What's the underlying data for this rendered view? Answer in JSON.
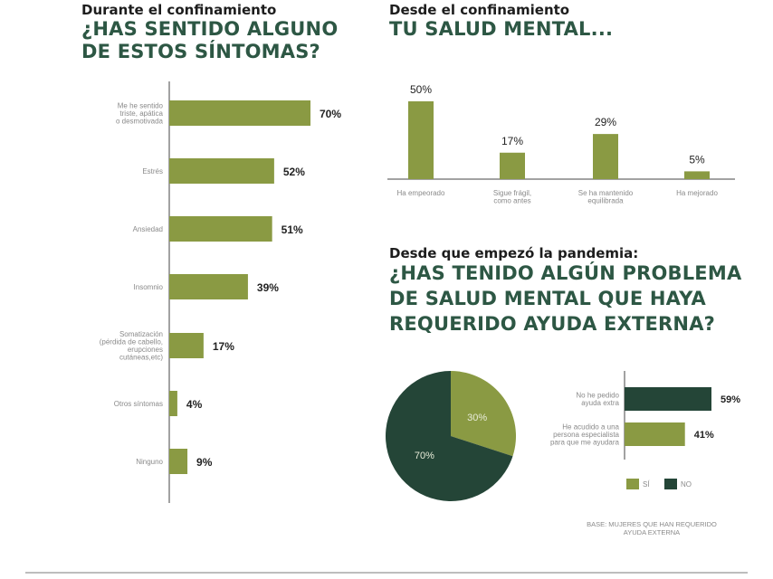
{
  "colors": {
    "green": "#8a9a43",
    "dark": "#244537",
    "heading": "#2d5744",
    "label": "#8a8a8a"
  },
  "left": {
    "subtitle": "Durante el confinamiento",
    "title": [
      "¿HAS SENTIDO ALGUNO",
      "DE ESTOS SÍNTOMAS?"
    ]
  },
  "top_right": {
    "subtitle": "Desde el confinamiento",
    "title": [
      "TU SALUD MENTAL..."
    ]
  },
  "bottom_right": {
    "subtitle": "Desde que empezó la pandemia:",
    "title": [
      "¿HAS TENIDO ALGÚN PROBLEMA",
      "DE SALUD MENTAL QUE HAYA",
      "REQUERIDO AYUDA EXTERNA?"
    ]
  },
  "base_note": [
    "BASE: MUJERES QUE HAN REQUERIDO",
    "AYUDA EXTERNA"
  ],
  "chart_data": [
    {
      "type": "bar",
      "orientation": "horizontal",
      "categories": [
        [
          "Me he sentido",
          "triste, apática",
          "o desmotivada"
        ],
        [
          "Estrés"
        ],
        [
          "Ansiedad"
        ],
        [
          "Insomnio"
        ],
        [
          "Somatización",
          "(pérdida de cabello,",
          "erupciones",
          "cutáneas,etc)"
        ],
        [
          "Otros síntomas"
        ],
        [
          "Ninguno"
        ]
      ],
      "values": [
        70,
        52,
        51,
        39,
        17,
        4,
        9
      ],
      "value_labels": [
        "70%",
        "52%",
        "51%",
        "39%",
        "17%",
        "4%",
        "9%"
      ],
      "xlim": [
        0,
        100
      ]
    },
    {
      "type": "bar",
      "orientation": "vertical",
      "categories": [
        [
          "Ha empeorado"
        ],
        [
          "Sigue frágil,",
          "como antes"
        ],
        [
          "Se ha mantenido",
          "equilibrada"
        ],
        [
          "Ha mejorado"
        ]
      ],
      "values": [
        50,
        17,
        29,
        5
      ],
      "value_labels": [
        "50%",
        "17%",
        "29%",
        "5%"
      ],
      "ylim": [
        0,
        60
      ]
    },
    {
      "type": "pie",
      "labels": [
        "SÍ",
        "NO"
      ],
      "values": [
        30,
        70
      ],
      "value_labels": [
        "30%",
        "70%"
      ],
      "colors": [
        "#8a9a43",
        "#244537"
      ],
      "legend": [
        "SÍ",
        "NO"
      ]
    },
    {
      "type": "bar",
      "orientation": "horizontal",
      "categories": [
        [
          "No he pedido",
          "ayuda extra"
        ],
        [
          "He acudido a una",
          "persona especialista",
          "para que me ayudara"
        ]
      ],
      "values": [
        59,
        41
      ],
      "value_labels": [
        "59%",
        "41%"
      ],
      "colors": [
        "#244537",
        "#8a9a43"
      ],
      "xlim": [
        0,
        100
      ]
    }
  ]
}
